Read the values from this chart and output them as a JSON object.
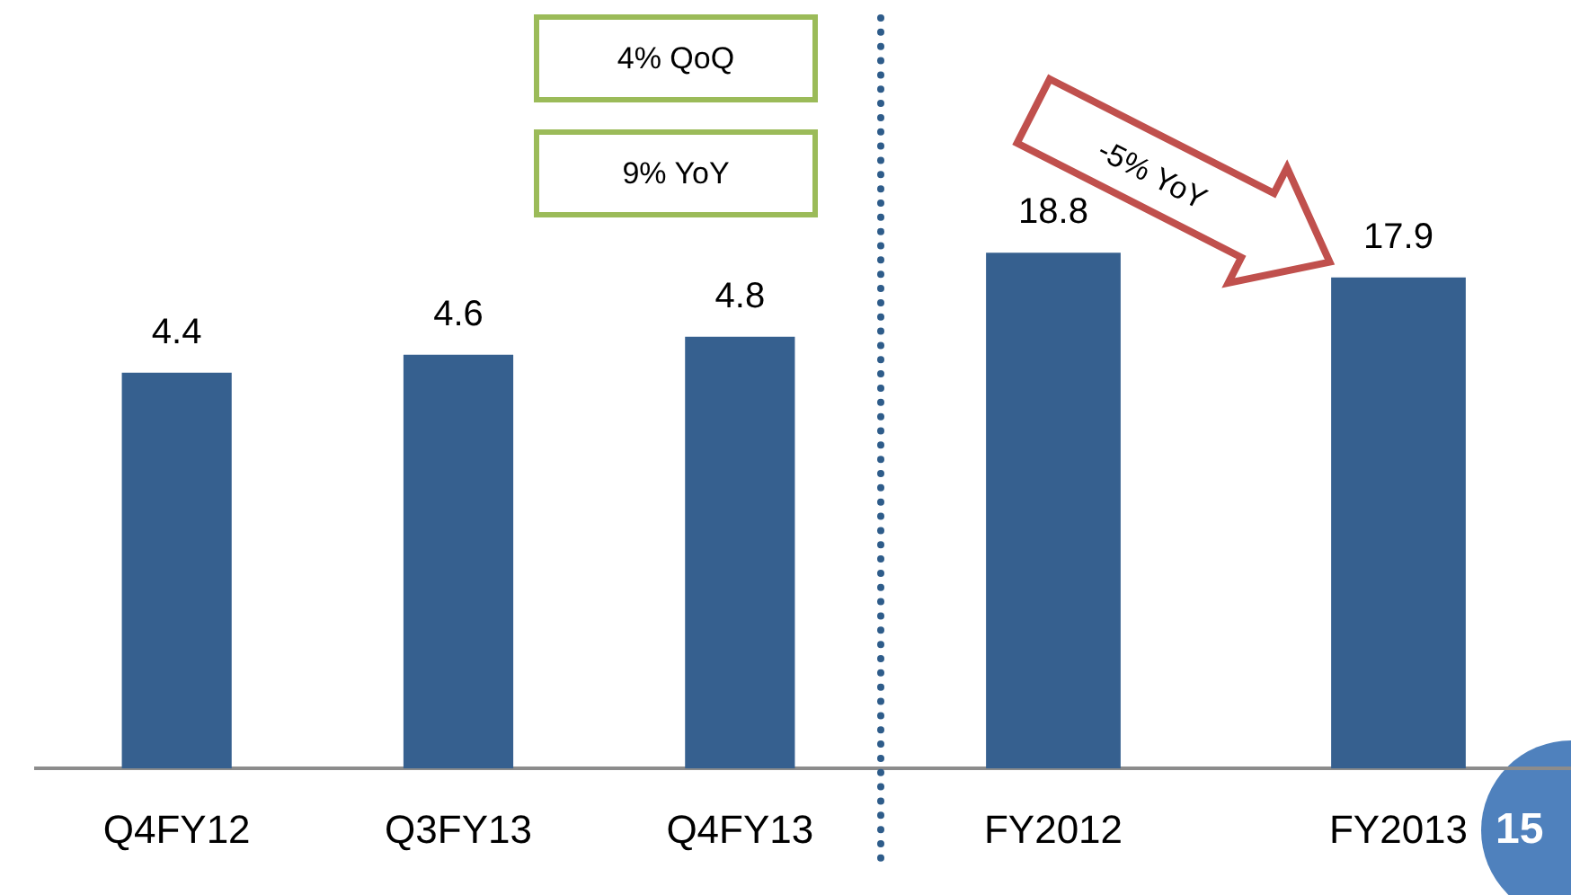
{
  "chart_data": [
    {
      "type": "bar",
      "categories": [
        "Q4FY12",
        "Q3FY13",
        "Q4FY13"
      ],
      "values": [
        4.4,
        4.6,
        4.8
      ],
      "color": "#36608f",
      "data_labels": true,
      "grid": false,
      "legend": false,
      "annotations": [
        "4% QoQ",
        "9% YoY"
      ]
    },
    {
      "type": "bar",
      "categories": [
        "FY2012",
        "FY2013"
      ],
      "values": [
        18.8,
        17.9
      ],
      "color": "#36608f",
      "data_labels": true,
      "grid": false,
      "legend": false,
      "annotations": [
        "-5% YoY",
        "15"
      ]
    }
  ]
}
